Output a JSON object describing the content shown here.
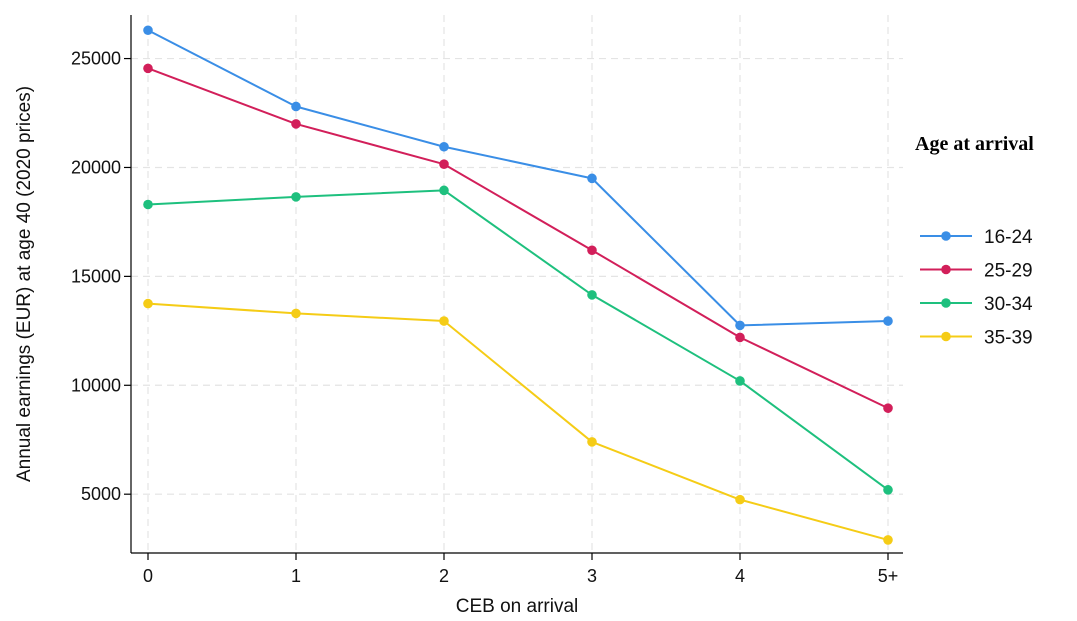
{
  "chart_data": {
    "type": "line",
    "title": "",
    "xlabel": "CEB on arrival",
    "ylabel": "Annual earnings (EUR) at age 40 (2020 prices)",
    "categories": [
      "0",
      "1",
      "2",
      "3",
      "4",
      "5+"
    ],
    "yticks": [
      5000,
      10000,
      15000,
      20000,
      25000
    ],
    "ylim": [
      2300,
      27000
    ],
    "grid": true,
    "legend": {
      "title": "Age at arrival",
      "placement": "right"
    },
    "series": [
      {
        "name": "16-24",
        "color": "#3a8ee6",
        "values": [
          26300,
          22800,
          20950,
          19500,
          12750,
          12950
        ]
      },
      {
        "name": "25-29",
        "color": "#d21f5a",
        "values": [
          24550,
          22000,
          20150,
          16200,
          12200,
          8950
        ]
      },
      {
        "name": "30-34",
        "color": "#1ec07e",
        "values": [
          18300,
          18650,
          18950,
          14150,
          10200,
          5200
        ]
      },
      {
        "name": "35-39",
        "color": "#f5cc16",
        "values": [
          13750,
          13300,
          12950,
          7400,
          4750,
          2900
        ]
      }
    ]
  }
}
